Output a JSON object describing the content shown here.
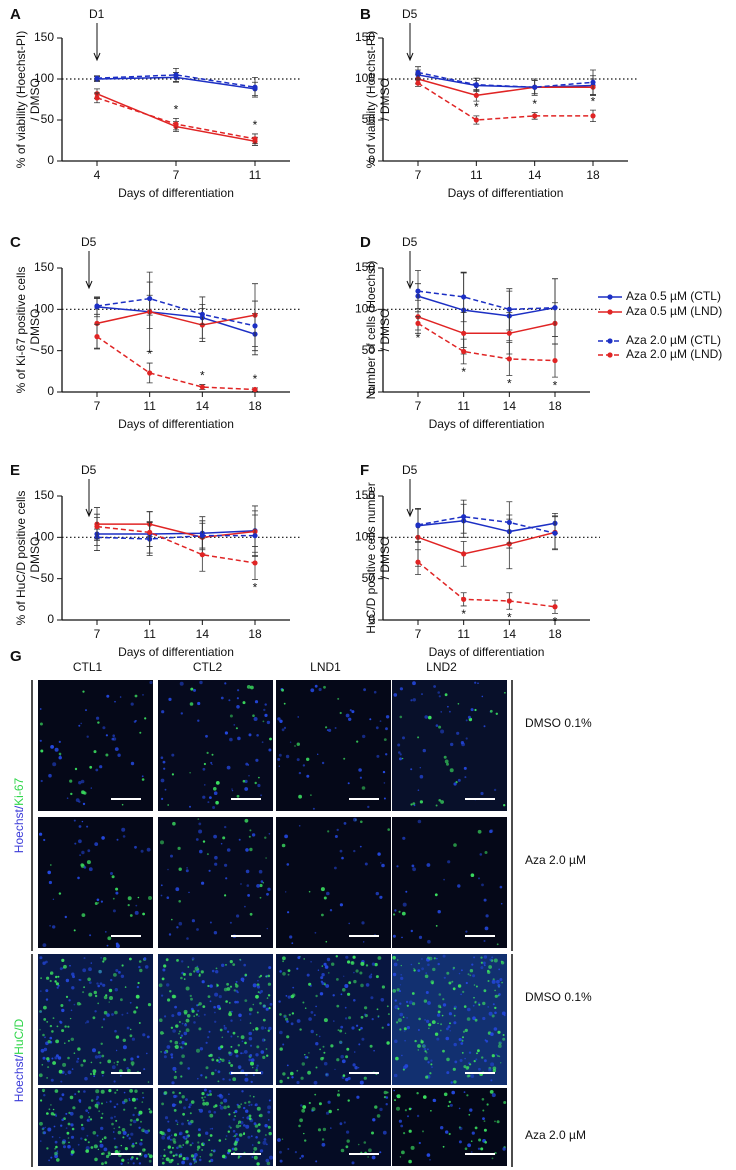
{
  "chart_data": [
    {
      "type": "line",
      "label": "A",
      "annotation": "D1",
      "ylabel": [
        "% of viability (Hoechst-PI)",
        "/ DMSO"
      ],
      "xlabel": "Days of differentiation",
      "categories": [
        "4",
        "7",
        "11"
      ],
      "ylim": [
        0,
        150
      ],
      "yticks": [
        0,
        50,
        100,
        150
      ],
      "refline": 100,
      "series": [
        {
          "color": "#1c2fc4",
          "dash": false,
          "values": [
            100,
            102,
            88
          ],
          "errors": [
            3,
            6,
            8
          ]
        },
        {
          "color": "#e02424",
          "dash": false,
          "values": [
            82,
            42,
            24
          ],
          "errors": [
            6,
            6,
            5
          ]
        },
        {
          "color": "#1c2fc4",
          "dash": true,
          "values": [
            101,
            105,
            90
          ],
          "errors": [
            3,
            8,
            12
          ]
        },
        {
          "color": "#e02424",
          "dash": true,
          "values": [
            77,
            45,
            27
          ],
          "errors": [
            6,
            7,
            6
          ]
        }
      ],
      "stars": {
        "text": "*",
        "at": [
          1,
          2
        ],
        "series": 3,
        "side": "above"
      }
    },
    {
      "type": "line",
      "label": "B",
      "annotation": "D5",
      "ylabel": [
        "% of viability (Hoechst-PI)",
        "/ DMSO"
      ],
      "xlabel": "Days of differentiation",
      "categories": [
        "7",
        "11",
        "14",
        "18"
      ],
      "ylim": [
        0,
        150
      ],
      "yticks": [
        0,
        50,
        100,
        150
      ],
      "refline": 100,
      "series": [
        {
          "color": "#1c2fc4",
          "dash": false,
          "values": [
            105,
            92,
            90,
            92
          ],
          "errors": [
            6,
            6,
            8,
            12
          ]
        },
        {
          "color": "#e02424",
          "dash": false,
          "values": [
            100,
            80,
            90,
            90
          ],
          "errors": [
            6,
            7,
            8,
            10
          ]
        },
        {
          "color": "#1c2fc4",
          "dash": true,
          "values": [
            108,
            93,
            90,
            96
          ],
          "errors": [
            7,
            8,
            10,
            15
          ]
        },
        {
          "color": "#e02424",
          "dash": true,
          "values": [
            95,
            50,
            55,
            55
          ],
          "errors": [
            4,
            5,
            4,
            7
          ]
        }
      ],
      "stars": {
        "text": "*",
        "at": [
          1,
          2,
          3
        ],
        "series": 3,
        "side": "above"
      }
    },
    {
      "type": "line",
      "label": "C",
      "annotation": "D5",
      "ylabel": [
        "% of Ki-67 positive cells",
        "/ DMSO"
      ],
      "xlabel": "Days of differentiation",
      "categories": [
        "7",
        "11",
        "14",
        "18"
      ],
      "ylim": [
        0,
        150
      ],
      "yticks": [
        0,
        50,
        100,
        150
      ],
      "refline": 100,
      "series": [
        {
          "color": "#1c2fc4",
          "dash": false,
          "values": [
            103,
            97,
            90,
            70
          ],
          "errors": [
            12,
            48,
            25,
            25
          ]
        },
        {
          "color": "#e02424",
          "dash": false,
          "values": [
            83,
            97,
            81,
            93
          ],
          "errors": [
            30,
            20,
            20,
            38
          ]
        },
        {
          "color": "#1c2fc4",
          "dash": true,
          "values": [
            104,
            113,
            94,
            80
          ],
          "errors": [
            10,
            20,
            12,
            30
          ]
        },
        {
          "color": "#e02424",
          "dash": true,
          "values": [
            67,
            23,
            6,
            3
          ],
          "errors": [
            15,
            12,
            3,
            2
          ]
        }
      ],
      "stars": {
        "text": "*",
        "at": [
          1,
          2,
          3
        ],
        "series": 3,
        "side": "above"
      }
    },
    {
      "type": "line",
      "label": "D",
      "annotation": "D5",
      "ylabel": [
        "Number of cells (Hoechst)",
        "/ DMSO"
      ],
      "xlabel": "Days of differentiation",
      "categories": [
        "7",
        "11",
        "14",
        "18"
      ],
      "ylim": [
        0,
        150
      ],
      "yticks": [
        0,
        50,
        100,
        150
      ],
      "refline": 100,
      "series": [
        {
          "name": "Aza 0.5 µM (CTL)",
          "color": "#1c2fc4",
          "dash": false,
          "values": [
            116,
            99,
            92,
            102
          ],
          "errors": [
            15,
            45,
            30,
            35
          ]
        },
        {
          "name": "Aza 0.5 µM (LND)",
          "color": "#e02424",
          "dash": false,
          "values": [
            91,
            71,
            71,
            83
          ],
          "errors": [
            20,
            25,
            25,
            25
          ]
        },
        {
          "name": "Aza 2.0 µM (CTL)",
          "color": "#1c2fc4",
          "dash": true,
          "values": [
            122,
            115,
            100,
            102
          ],
          "errors": [
            25,
            30,
            25,
            35
          ]
        },
        {
          "name": "Aza 2.0 µM (LND)",
          "color": "#e02424",
          "dash": true,
          "values": [
            83,
            49,
            40,
            38
          ],
          "errors": [
            8,
            15,
            20,
            20
          ]
        }
      ],
      "stars": {
        "text": "*",
        "at": [
          0,
          1,
          2,
          3
        ],
        "series": 3,
        "side": "below"
      }
    },
    {
      "type": "line",
      "label": "E",
      "annotation": "D5",
      "ylabel": [
        "% of HuC/D positive cells",
        "/ DMSO"
      ],
      "xlabel": "Days of differentiation",
      "categories": [
        "7",
        "11",
        "14",
        "18"
      ],
      "ylim": [
        0,
        150
      ],
      "yticks": [
        0,
        50,
        100,
        150
      ],
      "refline": 100,
      "series": [
        {
          "color": "#1c2fc4",
          "dash": false,
          "values": [
            104,
            104,
            105,
            108
          ],
          "errors": [
            20,
            15,
            20,
            30
          ]
        },
        {
          "color": "#e02424",
          "dash": false,
          "values": [
            116,
            116,
            100,
            107
          ],
          "errors": [
            20,
            15,
            20,
            25
          ]
        },
        {
          "color": "#1c2fc4",
          "dash": true,
          "values": [
            100,
            98,
            102,
            102
          ],
          "errors": [
            10,
            20,
            15,
            25
          ]
        },
        {
          "color": "#e02424",
          "dash": true,
          "values": [
            113,
            106,
            79,
            69
          ],
          "errors": [
            15,
            25,
            20,
            20
          ]
        }
      ],
      "stars": {
        "text": "*",
        "at": [
          3
        ],
        "series": 3,
        "side": "below"
      }
    },
    {
      "type": "line",
      "label": "F",
      "annotation": "D5",
      "ylabel": [
        "HuC/D positive cells number",
        "/ DMSO"
      ],
      "xlabel": "Days of differentiation",
      "categories": [
        "7",
        "11",
        "14",
        "18"
      ],
      "ylim": [
        0,
        150
      ],
      "yticks": [
        0,
        50,
        100,
        150
      ],
      "refline": 100,
      "series": [
        {
          "color": "#1c2fc4",
          "dash": false,
          "values": [
            114,
            120,
            107,
            117
          ],
          "errors": [
            20,
            20,
            20,
            12
          ]
        },
        {
          "color": "#e02424",
          "dash": false,
          "values": [
            100,
            80,
            92,
            106
          ],
          "errors": [
            35,
            15,
            30,
            20
          ]
        },
        {
          "color": "#1c2fc4",
          "dash": true,
          "values": [
            115,
            125,
            118,
            105
          ],
          "errors": [
            20,
            20,
            25,
            20
          ]
        },
        {
          "color": "#e02424",
          "dash": true,
          "values": [
            70,
            25,
            23,
            16
          ],
          "errors": [
            15,
            8,
            10,
            8
          ]
        }
      ],
      "stars": {
        "text": "*",
        "at": [
          1,
          2,
          3
        ],
        "series": 3,
        "side": "below"
      }
    }
  ],
  "panel_g": {
    "label": "G",
    "columns": [
      "CTL1",
      "CTL2",
      "LND1",
      "LND2"
    ],
    "groups": [
      {
        "stain": [
          "Hoechst/",
          "Ki-67"
        ],
        "rows": [
          "DMSO 0.1%",
          "Aza 2.0 µM"
        ]
      },
      {
        "stain": [
          "Hoechst/",
          "HuC/D"
        ],
        "rows": [
          "DMSO 0.1%",
          "Aza 2.0 µM"
        ]
      }
    ]
  }
}
